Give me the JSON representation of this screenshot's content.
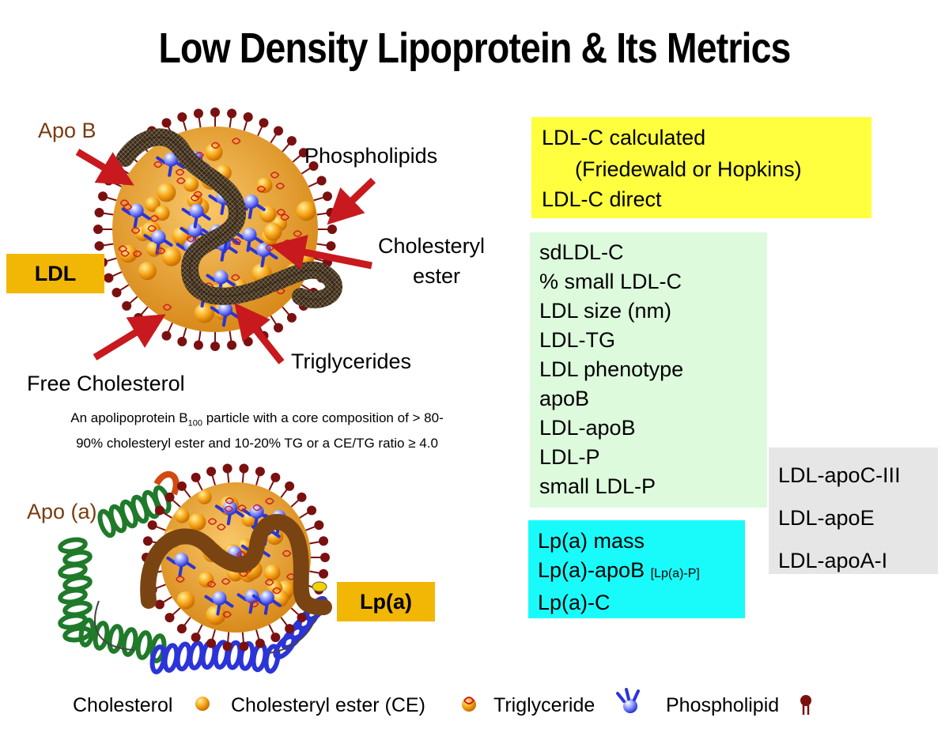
{
  "title": "Low Density Lipoprotein & Its Metrics",
  "ldl_figure": {
    "labels": {
      "apo_b": "Apo B",
      "phospholipids": "Phospholipids",
      "cholesteryl_ester_line1": "Cholesteryl",
      "cholesteryl_ester_line2": "ester",
      "triglycerides": "Triglycerides",
      "free_cholesterol": "Free Cholesterol"
    },
    "tag": "LDL",
    "caption_part1": "An apolipoprotein B",
    "caption_sub": "100",
    "caption_part2": " particle with a core composition of > 80-",
    "caption_line2": "90% cholesteryl ester and 10-20% TG or a CE/TG ratio ≥ 4.0"
  },
  "lpa_figure": {
    "label": "Apo (a)",
    "tag": "Lp(a)"
  },
  "metrics": {
    "yellow": {
      "line1": "LDL-C calculated",
      "line2": "(Friedewald or Hopkins)",
      "line3": "LDL-C direct"
    },
    "green": [
      "sdLDL-C",
      "% small LDL-C",
      "LDL size (nm)",
      "LDL-TG",
      "LDL phenotype",
      "apoB",
      "LDL-apoB",
      "LDL-P",
      "small LDL-P"
    ],
    "cyan": {
      "line1": "Lp(a) mass",
      "line2": "Lp(a)-apoB ",
      "line2_small": "[Lp(a)-P]",
      "line3": "Lp(a)-C"
    },
    "grey": [
      "LDL-apoC-III",
      "LDL-apoE",
      "LDL-apoA-I"
    ]
  },
  "legend": {
    "cholesterol": "Cholesterol",
    "cholesteryl_ester": "Cholesteryl ester (CE)",
    "triglyceride": "Triglyceride",
    "phospholipid": "Phospholipid"
  },
  "colors": {
    "tag_orange": "#f2b705",
    "yellow_box": "#ffff40",
    "green_box": "#ddfadd",
    "cyan_box": "#19fbfb",
    "grey_box": "#e6e6e6",
    "arrow_red": "#c8191e",
    "apo_b_band": "#3a2a1a",
    "phospholipid_head": "#7a1010",
    "cholesterol_ball": "#f7a81b",
    "triglyceride_blue": "#2a34d8"
  }
}
